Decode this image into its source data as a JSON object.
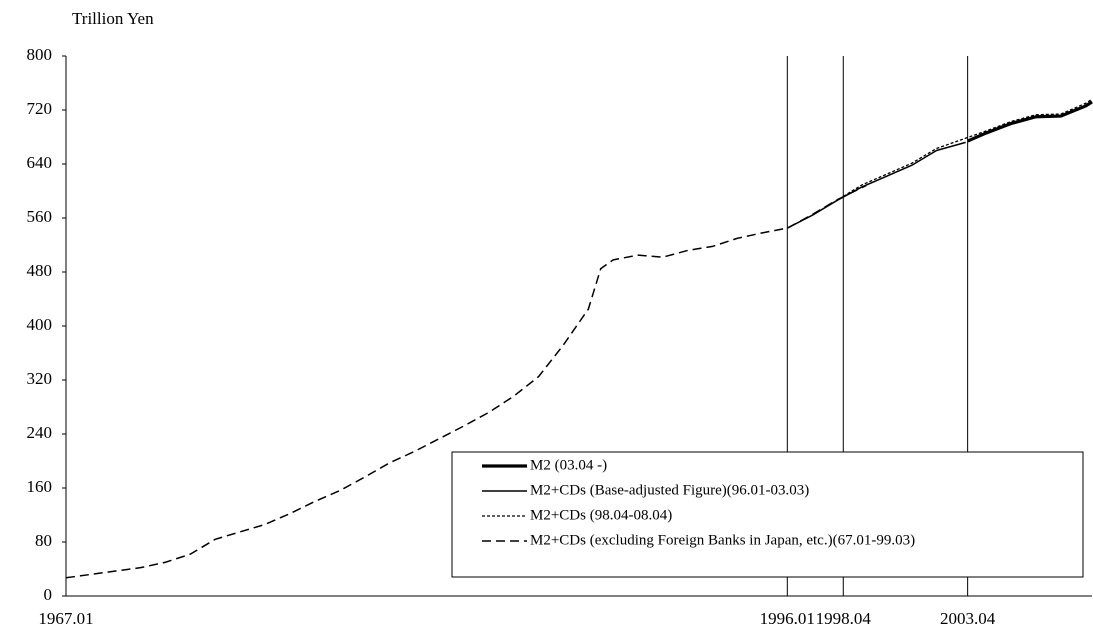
{
  "chart_data": {
    "type": "line",
    "y_label": "Trillion Yen",
    "xlim": [
      1967.0,
      2008.25
    ],
    "xticks": [
      {
        "value": 1967.0,
        "label": "1967.01"
      },
      {
        "value": 1996.0,
        "label": "1996.01"
      },
      {
        "value": 1998.25,
        "label": "1998.04"
      },
      {
        "value": 2003.25,
        "label": "2003.04"
      }
    ],
    "ylim": [
      0,
      800
    ],
    "yticks": [
      0,
      80,
      160,
      240,
      320,
      400,
      480,
      560,
      640,
      720,
      800
    ],
    "legend": "lower right",
    "series": [
      {
        "name": "M2 (03.04 -)",
        "color": "#000000",
        "style": "thick",
        "x": [
          2003.25,
          2004,
          2005,
          2006,
          2007,
          2008,
          2008.25
        ],
        "values": [
          674,
          686,
          700,
          710,
          711,
          726,
          732
        ]
      },
      {
        "name": "M2+CDs (Base-adjusted Figure)(96.01-03.03)",
        "color": "#000000",
        "style": "solid",
        "x": [
          1996.0,
          1997,
          1998,
          1999,
          2000,
          2001,
          2002,
          2003.17
        ],
        "values": [
          545,
          564,
          586,
          606,
          622,
          638,
          660,
          672
        ]
      },
      {
        "name": "M2+CDs (98.04-08.04)",
        "color": "#000000",
        "style": "dotted",
        "x": [
          1998.25,
          1999,
          2000,
          2001,
          2002,
          2003,
          2004,
          2005,
          2006,
          2007,
          2008,
          2008.25
        ],
        "values": [
          592,
          609,
          625,
          641,
          663,
          676,
          689,
          703,
          713,
          714,
          730,
          736
        ]
      },
      {
        "name": "M2+CDs (excluding Foreign Banks in Japan, etc.)(67.01-99.03)",
        "color": "#000000",
        "style": "dashed",
        "x": [
          1967.0,
          1968,
          1969,
          1970,
          1971,
          1972,
          1973,
          1974,
          1975,
          1976,
          1977,
          1978,
          1979,
          1980,
          1981,
          1982,
          1983,
          1984,
          1985,
          1986,
          1987,
          1988,
          1988.5,
          1989,
          1990,
          1991,
          1992,
          1993,
          1994,
          1995,
          1996,
          1997,
          1998,
          1999.17
        ],
        "values": [
          27,
          32,
          37,
          42,
          50,
          62,
          84,
          95,
          106,
          122,
          140,
          156,
          176,
          197,
          214,
          233,
          252,
          272,
          296,
          325,
          372,
          425,
          485,
          498,
          505,
          502,
          512,
          518,
          530,
          538,
          545,
          565,
          587,
          608
        ]
      }
    ]
  }
}
